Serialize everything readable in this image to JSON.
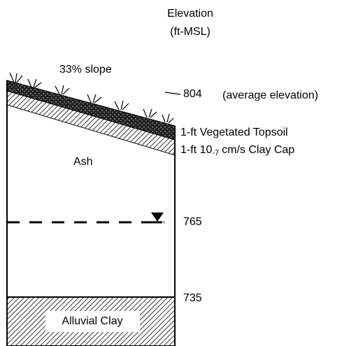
{
  "header": {
    "title": "Elevation",
    "units": "(ft-MSL)"
  },
  "slope_label": "33% slope",
  "elevations": [
    {
      "value": 804,
      "note": "(average elevation)"
    },
    {
      "value": 765
    },
    {
      "value": 735
    }
  ],
  "layers": {
    "topsoil": "1-ft Vegetated Topsoil",
    "clay_cap": {
      "prefix": "1-ft 10",
      "exponent": "-7",
      "suffix": "cm/s Clay Cap"
    },
    "ash": "Ash",
    "alluvial": "Alluvial Clay"
  }
}
